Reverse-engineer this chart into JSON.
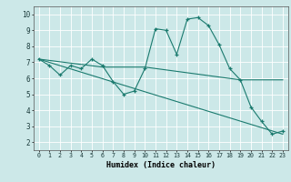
{
  "xlabel": "Humidex (Indice chaleur)",
  "background_color": "#cce8e8",
  "grid_color": "#ffffff",
  "line_color": "#1a7a6e",
  "xlim": [
    -0.5,
    23.5
  ],
  "ylim": [
    1.5,
    10.5
  ],
  "xtick_labels": [
    "0",
    "1",
    "2",
    "3",
    "4",
    "5",
    "6",
    "7",
    "8",
    "9",
    "10",
    "11",
    "12",
    "13",
    "14",
    "15",
    "16",
    "17",
    "18",
    "19",
    "20",
    "21",
    "22",
    "23"
  ],
  "ytick_labels": [
    "2",
    "3",
    "4",
    "5",
    "6",
    "7",
    "8",
    "9",
    "10"
  ],
  "line1_x": [
    0,
    1,
    2,
    3,
    4,
    5,
    6,
    7,
    8,
    9,
    10,
    11,
    12,
    13,
    14,
    15,
    16,
    17,
    18,
    19,
    20,
    21,
    22,
    23
  ],
  "line1_y": [
    7.2,
    6.8,
    6.2,
    6.8,
    6.6,
    7.2,
    6.8,
    5.8,
    5.0,
    5.2,
    6.6,
    9.1,
    9.0,
    7.5,
    9.7,
    9.8,
    9.3,
    8.1,
    6.6,
    5.9,
    4.2,
    3.3,
    2.5,
    2.7
  ],
  "line2_x": [
    0,
    6,
    10,
    19,
    23
  ],
  "line2_y": [
    7.2,
    6.7,
    6.7,
    5.9,
    5.9
  ],
  "line3_x": [
    0,
    23
  ],
  "line3_y": [
    7.2,
    2.5
  ]
}
